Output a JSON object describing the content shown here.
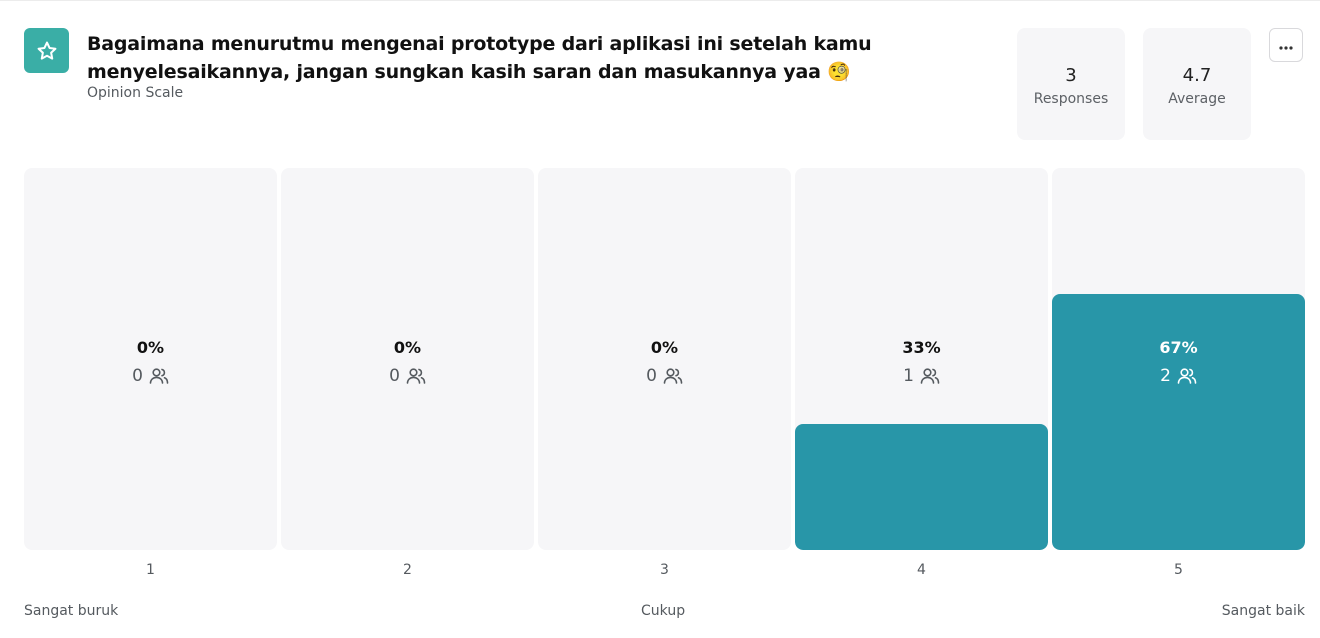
{
  "question": {
    "title": "Bagaimana menurutmu mengenai prototype dari aplikasi ini setelah kamu menyelesaikannya, jangan sungkan kasih saran dan masukannya yaa 🧐",
    "type": "Opinion Scale",
    "icon": "star-icon"
  },
  "stats": {
    "responses_value": "3",
    "responses_label": "Responses",
    "average_value": "4.7",
    "average_label": "Average"
  },
  "menu": {
    "icon": "more-horizontal-icon"
  },
  "chart_data": {
    "type": "bar",
    "categories": [
      "1",
      "2",
      "3",
      "4",
      "5"
    ],
    "values": [
      0,
      0,
      0,
      33,
      67
    ],
    "percent_labels": [
      "0%",
      "0%",
      "0%",
      "33%",
      "67%"
    ],
    "counts": [
      "0",
      "0",
      "0",
      "1",
      "2"
    ],
    "ylim": [
      0,
      100
    ],
    "scale_labels": {
      "low": "Sangat buruk",
      "mid": "Cukup",
      "high": "Sangat baik"
    },
    "colors": {
      "fill": "#2896a8",
      "track": "#f6f6f8"
    }
  }
}
